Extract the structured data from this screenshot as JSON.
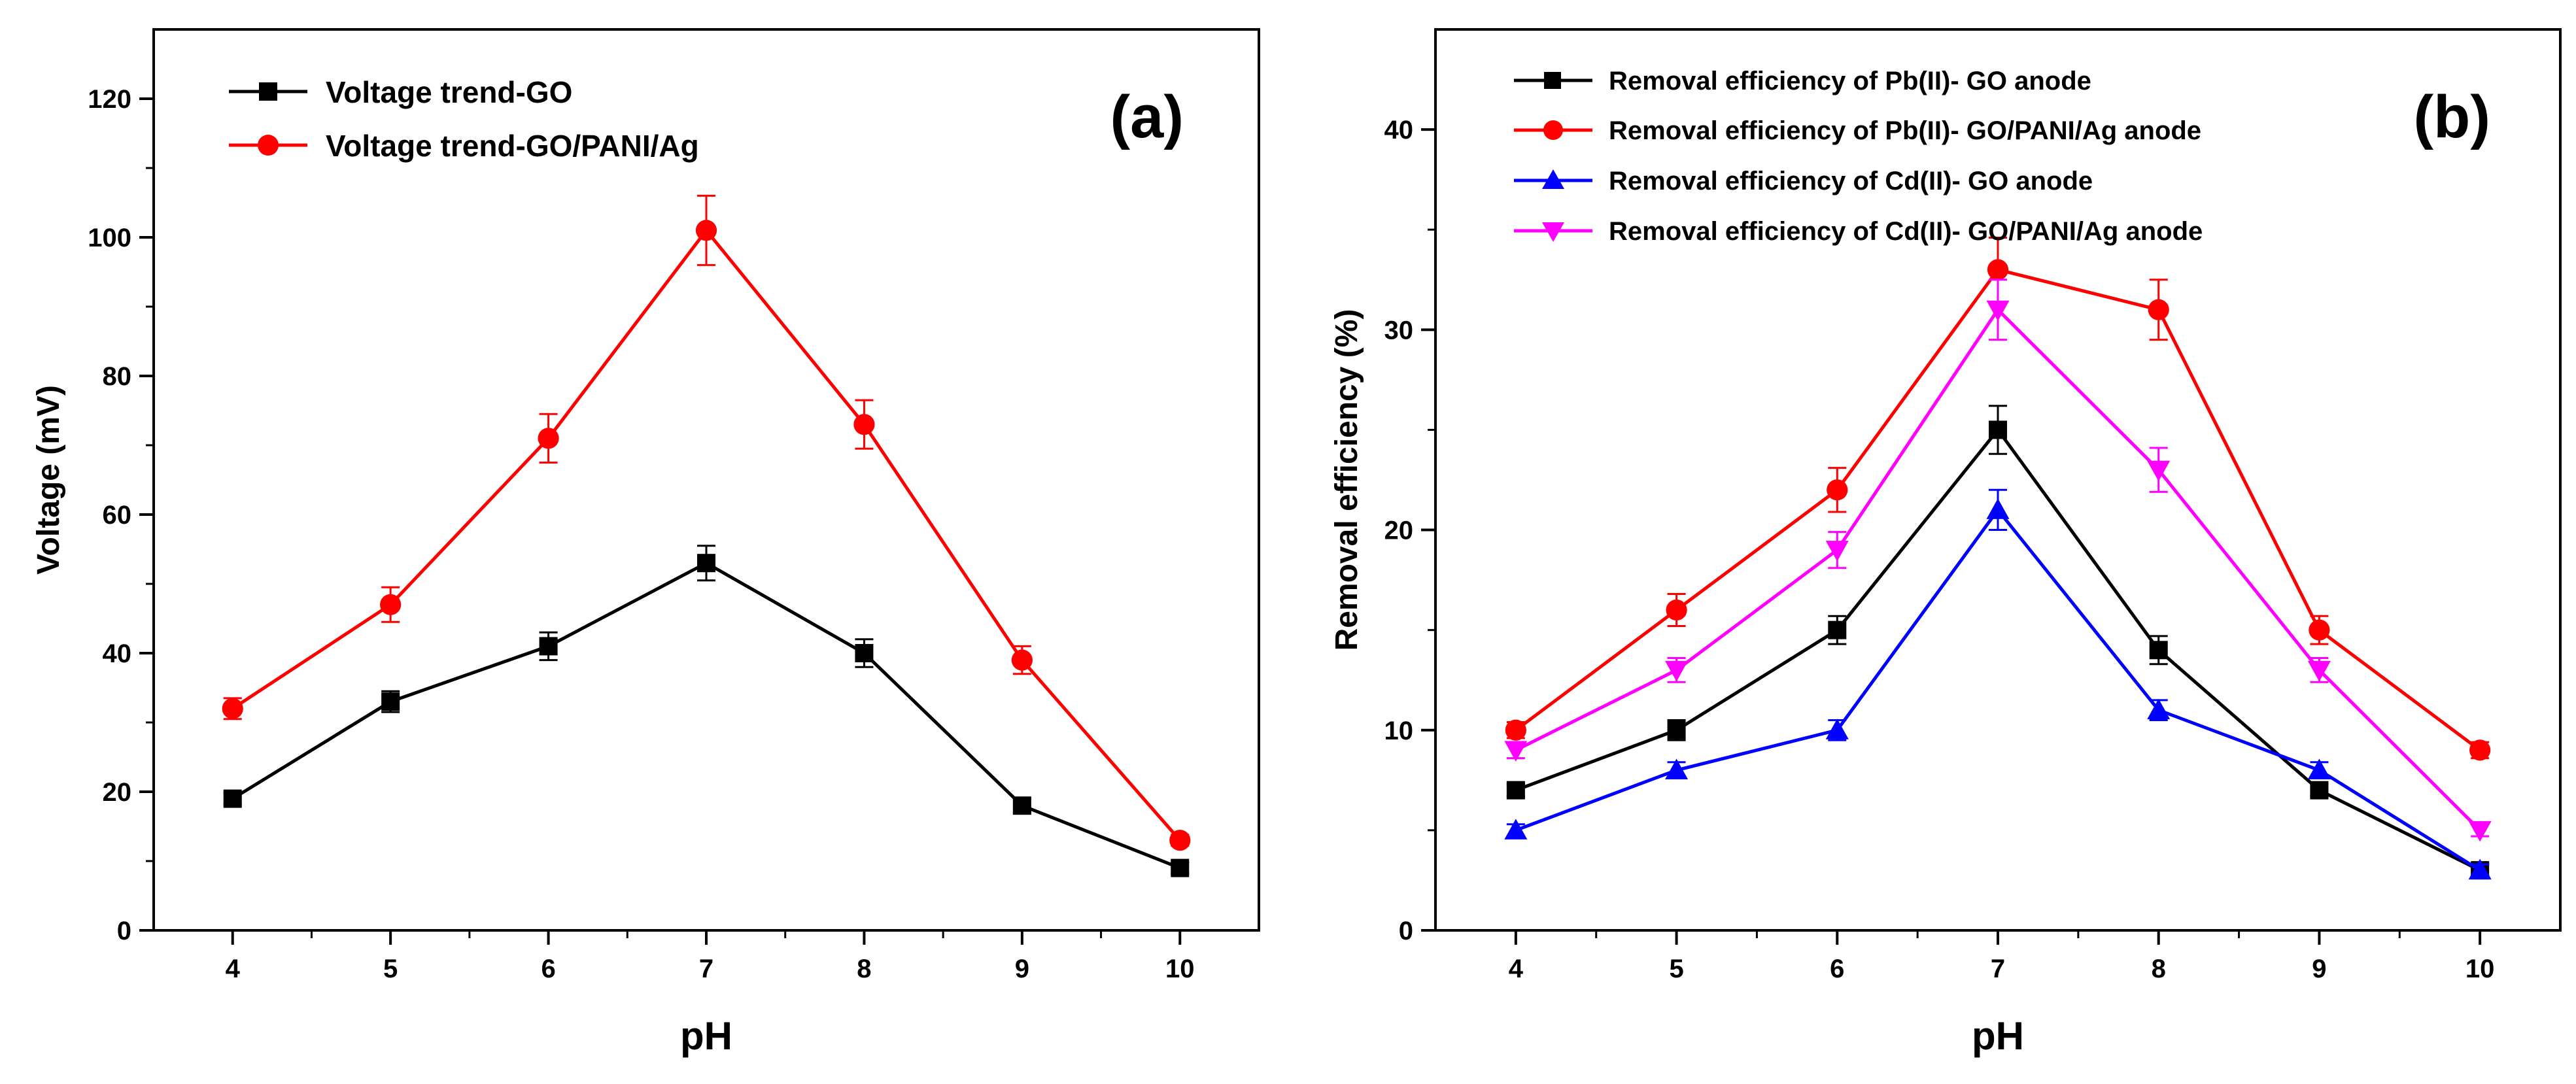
{
  "chart_data": [
    {
      "type": "line",
      "panel_label": "(a)",
      "title": "",
      "xlabel": "pH",
      "ylabel": "Voltage (mV)",
      "xlim": [
        3.5,
        10.5
      ],
      "ylim": [
        0,
        130
      ],
      "xticks": [
        4,
        5,
        6,
        7,
        8,
        9,
        10
      ],
      "yticks": [
        0,
        20,
        40,
        60,
        80,
        100,
        120
      ],
      "legend_position": "top-left",
      "x": [
        4,
        5,
        6,
        7,
        8,
        9,
        10
      ],
      "series": [
        {
          "name": "Voltage trend-GO",
          "color": "#000000",
          "marker": "square",
          "values": [
            19,
            33,
            41,
            53,
            40,
            18,
            9
          ],
          "errors": [
            0.8,
            1.5,
            2.0,
            2.5,
            2.0,
            1.0,
            0.8
          ]
        },
        {
          "name": "Voltage trend-GO/PANI/Ag",
          "color": "#ff0000",
          "marker": "circle",
          "values": [
            32,
            47,
            71,
            101,
            73,
            39,
            13
          ],
          "errors": [
            1.5,
            2.5,
            3.5,
            5.0,
            3.5,
            2.0,
            0.8
          ]
        }
      ]
    },
    {
      "type": "line",
      "panel_label": "(b)",
      "title": "",
      "xlabel": "pH",
      "ylabel": "Removal efficiency (%)",
      "xlim": [
        3.5,
        10.5
      ],
      "ylim": [
        0,
        45
      ],
      "xticks": [
        4,
        5,
        6,
        7,
        8,
        9,
        10
      ],
      "yticks": [
        0,
        10,
        20,
        30,
        40
      ],
      "legend_position": "top-left",
      "x": [
        4,
        5,
        6,
        7,
        8,
        9,
        10
      ],
      "series": [
        {
          "name": "Removal efficiency of Pb(II)- GO anode",
          "color": "#000000",
          "marker": "square",
          "values": [
            7,
            10,
            15,
            25,
            14,
            7,
            3
          ],
          "errors": [
            0.3,
            0.5,
            0.7,
            1.2,
            0.7,
            0.3,
            0.3
          ]
        },
        {
          "name": "Removal efficiency of Pb(II)- GO/PANI/Ag anode",
          "color": "#ff0000",
          "marker": "circle",
          "values": [
            10,
            16,
            22,
            33,
            31,
            15,
            9
          ],
          "errors": [
            0.4,
            0.8,
            1.1,
            1.6,
            1.5,
            0.7,
            0.4
          ]
        },
        {
          "name": "Removal efficiency of Cd(II)- GO anode",
          "color": "#0000ff",
          "marker": "triangle-up",
          "values": [
            5,
            8,
            10,
            21,
            11,
            8,
            3
          ],
          "errors": [
            0.3,
            0.4,
            0.5,
            1.0,
            0.5,
            0.4,
            0.3
          ]
        },
        {
          "name": "Removal efficiency of Cd(II)- GO/PANI/Ag anode",
          "color": "#ff00ff",
          "marker": "triangle-down",
          "values": [
            9,
            13,
            19,
            31,
            23,
            13,
            5
          ],
          "errors": [
            0.4,
            0.6,
            0.9,
            1.5,
            1.1,
            0.6,
            0.3
          ]
        }
      ]
    }
  ]
}
